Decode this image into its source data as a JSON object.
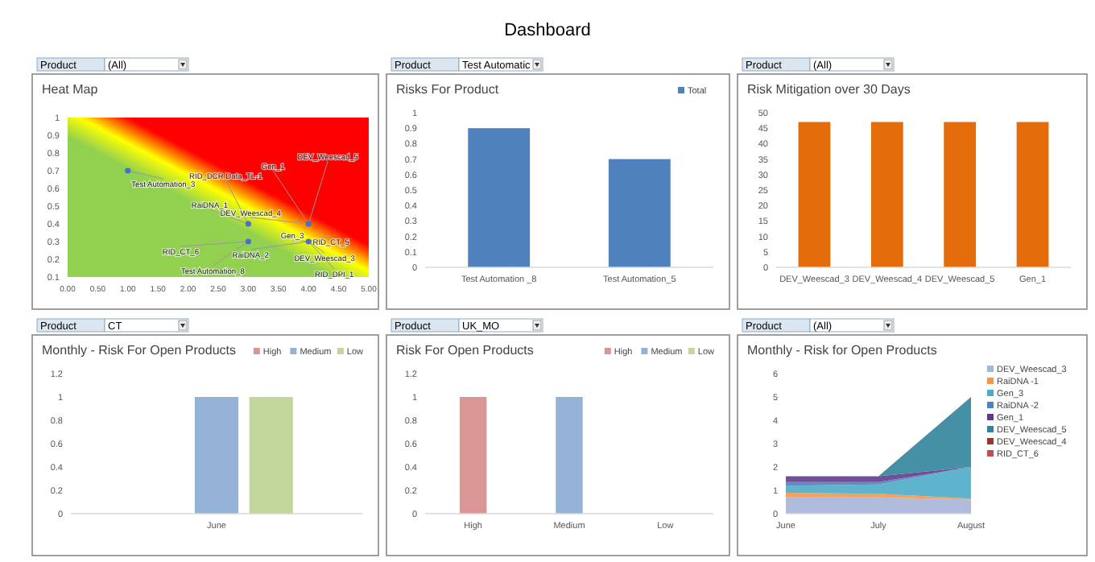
{
  "chart_data": [
    {
      "type": "other",
      "title": "Dashboard"
    },
    {
      "type": "scatter",
      "title": "Heat Map",
      "marker": "circle",
      "color": "#4472c4",
      "x": [
        1,
        3,
        3,
        4,
        4
      ],
      "values": [
        0.7,
        0.4,
        0.3,
        0.4,
        0.3
      ],
      "xlim": [
        0,
        5
      ],
      "xticks": [
        {
          "value": 0,
          "label": "0.00"
        },
        {
          "value": 0.5,
          "label": "0.50"
        },
        {
          "value": 1,
          "label": "1.00"
        },
        {
          "value": 1.5,
          "label": "1.50"
        },
        {
          "value": 2,
          "label": "2.00"
        },
        {
          "value": 2.5,
          "label": "2.50"
        },
        {
          "value": 3,
          "label": "3.00"
        },
        {
          "value": 3.5,
          "label": "3.50"
        },
        {
          "value": 4,
          "label": "4.00"
        },
        {
          "value": 4.5,
          "label": "4.50"
        },
        {
          "value": 5,
          "label": "5.00"
        }
      ],
      "ylim": [
        0.1,
        1
      ],
      "yticks": [
        0.1,
        0.2,
        0.3,
        0.4,
        0.5,
        0.6,
        0.7,
        0.8,
        0.9,
        1
      ],
      "annotations": [
        "Product",
        "(All)",
        {
          "text": "Test Automation_3",
          "x": 1,
          "y": 0.7
        },
        {
          "text": "RID_DCR Data_TL-1",
          "x": 3,
          "y": 0.4
        },
        {
          "text": "RaiDNA_1",
          "x": 3,
          "y": 0.4
        },
        {
          "text": "RID_CT_6",
          "x": 3,
          "y": 0.3
        },
        {
          "text": "Test Automation_8",
          "x": 3,
          "y": 0.3
        },
        {
          "text": "Gen_1",
          "x": 4,
          "y": 0.4
        },
        {
          "text": "DEV_Weescad_5",
          "x": 4,
          "y": 0.4
        },
        {
          "text": "DEV_Weescad_4",
          "x": 4,
          "y": 0.4
        },
        {
          "text": "Gen_3",
          "x": 4,
          "y": 0.3
        },
        {
          "text": "RaiDNA_2",
          "x": 4,
          "y": 0.3
        },
        {
          "text": "RID_CT_5",
          "x": 4,
          "y": 0.3
        },
        {
          "text": "DEV_Weescad_3",
          "x": 4,
          "y": 0.3
        },
        {
          "text": "RID_DPI_1",
          "x": 4,
          "y": 0.3
        }
      ]
    },
    {
      "type": "bar",
      "title": "Risks For Product",
      "categories": [
        "Test Automation _8",
        "Test Automation_5"
      ],
      "series": [
        {
          "name": "Total",
          "color": "#4f81bd",
          "values": [
            0.9,
            0.7
          ]
        }
      ],
      "ylim": [
        0,
        1
      ],
      "yticks": [
        0,
        0.1,
        0.2,
        0.3,
        0.4,
        0.5,
        0.6,
        0.7,
        0.8,
        0.9,
        1
      ],
      "legend": "top right",
      "annotations": [
        "Product",
        "Test Automatic"
      ]
    },
    {
      "type": "bar",
      "title": "Risk Mitigation over 30 Days",
      "categories": [
        "DEV_Weescad_3",
        "DEV_Weescad_4",
        "DEV_Weescad_5",
        "Gen_1"
      ],
      "values": [
        47,
        47,
        47,
        47
      ],
      "color": "#e46c0a",
      "ylim": [
        0,
        50
      ],
      "yticks": [
        0,
        5,
        10,
        15,
        20,
        25,
        30,
        35,
        40,
        45,
        50
      ],
      "annotations": [
        "Product",
        "(All)"
      ]
    },
    {
      "type": "bar",
      "title": "Monthly - Risk For Open Products",
      "categories": [
        "June"
      ],
      "series": [
        {
          "name": "High",
          "color": "#d99694",
          "values": [
            0
          ]
        },
        {
          "name": "Medium",
          "color": "#95b3d7",
          "values": [
            1
          ]
        },
        {
          "name": "Low",
          "color": "#c3d69b",
          "values": [
            1
          ]
        }
      ],
      "ylim": [
        0,
        1.2
      ],
      "yticks": [
        0,
        0.2,
        0.4,
        0.6,
        0.8,
        1,
        1.2
      ],
      "legend": "top right",
      "annotations": [
        "Product",
        "CT"
      ]
    },
    {
      "type": "bar",
      "title": "Risk For Open Products",
      "categories": [
        "High",
        "Medium",
        "Low"
      ],
      "stacked": true,
      "series": [
        {
          "name": "High",
          "color": "#d99694",
          "values": [
            1,
            null,
            null
          ]
        },
        {
          "name": "Medium",
          "color": "#95b3d7",
          "values": [
            null,
            1,
            null
          ]
        },
        {
          "name": "Low",
          "color": "#c3d69b",
          "values": [
            null,
            null,
            0
          ]
        }
      ],
      "ylim": [
        0,
        1.2
      ],
      "yticks": [
        0,
        0.2,
        0.4,
        0.6,
        0.8,
        1,
        1.2
      ],
      "legend": "top right",
      "annotations": [
        "Product",
        "UK_MO"
      ]
    },
    {
      "type": "area",
      "stacked": true,
      "title": "Monthly - Risk for Open Products",
      "categories": [
        "June",
        "July",
        "August"
      ],
      "series": [
        {
          "name": "DEV_Weescad_3",
          "color": "#a7b5d8",
          "values": [
            0.7,
            0.7,
            0.6
          ]
        },
        {
          "name": "RaiDNA -1",
          "color": "#f79646",
          "values": [
            0.2,
            0.15,
            0.05
          ]
        },
        {
          "name": "Gen_3",
          "color": "#4bacc6",
          "values": [
            0.3,
            0.4,
            1.35
          ]
        },
        {
          "name": "RaiDNA -2",
          "color": "#4f81bd",
          "values": [
            0.15,
            0.1,
            0
          ]
        },
        {
          "name": "Gen_1",
          "color": "#5f3c8a",
          "values": [
            0.25,
            0.25,
            0
          ]
        },
        {
          "name": "DEV_Weescad_5",
          "color": "#31849b",
          "values": [
            0,
            0,
            3
          ]
        },
        {
          "name": "DEV_Weescad_4",
          "color": "#953735",
          "values": [
            null,
            null,
            null
          ]
        },
        {
          "name": "RID_CT_6",
          "color": "#c0504d",
          "values": [
            null,
            null,
            null
          ]
        }
      ],
      "ylim": [
        0,
        6
      ],
      "yticks": [
        0,
        1,
        2,
        3,
        4,
        5,
        6
      ],
      "legend": "top right",
      "annotations": [
        "Product",
        "(All)"
      ]
    }
  ]
}
